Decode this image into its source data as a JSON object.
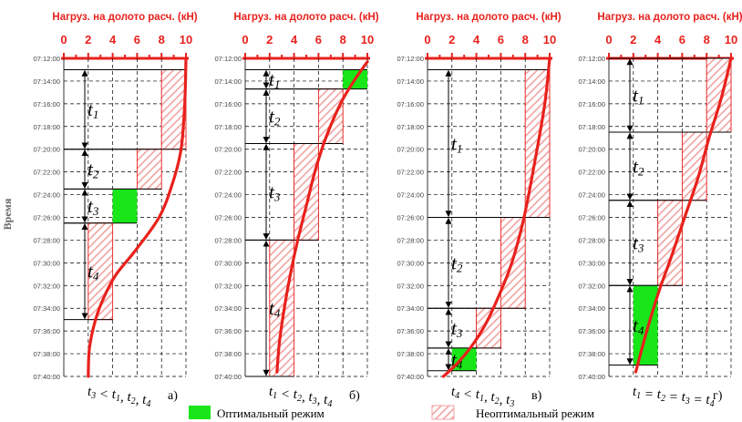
{
  "axis": {
    "x_title": "Нагруз. на долото расч. (кН)",
    "x_ticks": [
      "0",
      "2",
      "4",
      "6",
      "8",
      "10"
    ],
    "y_title": "Время",
    "y_ticks": [
      "07:12:00",
      "07:14:00",
      "07:16:00",
      "07:18:00",
      "07:20:00",
      "07:22:00",
      "07:24:00",
      "07:26:00",
      "07:28:00",
      "07:30:00",
      "07:32:00",
      "07:34:00",
      "07:36:00",
      "07:38:00",
      "07:40:00"
    ]
  },
  "panels": [
    {
      "id": "a",
      "label": "а)",
      "condition": {
        "parts": [
          "t3",
          " < ",
          "t1",
          ", ",
          "t2",
          ", ",
          "t4"
        ]
      },
      "curve_points": [
        [
          10.0,
          0
        ],
        [
          9.9,
          4
        ],
        [
          9.6,
          8
        ],
        [
          8.9,
          11
        ],
        [
          7.8,
          14
        ],
        [
          5.8,
          17
        ],
        [
          4.3,
          19
        ],
        [
          3.3,
          21
        ],
        [
          2.6,
          23
        ],
        [
          2.1,
          25.5
        ],
        [
          2.0,
          28
        ]
      ],
      "steps": [
        {
          "label": "t1",
          "start_min": 1,
          "end_min": 8,
          "load": 8.0
        },
        {
          "label": "t2",
          "start_min": 8,
          "end_min": 11.5,
          "load": 6.0
        },
        {
          "label": "t3",
          "start_min": 11.5,
          "end_min": 14.5,
          "load": 4.0
        },
        {
          "label": "t4",
          "start_min": 14.5,
          "end_min": 23,
          "load": 2.0
        }
      ],
      "optimal_step": "t3"
    },
    {
      "id": "b",
      "label": "б)",
      "condition": {
        "parts": [
          "t1",
          " < ",
          "t2",
          ", ",
          "t3",
          ", ",
          "t4"
        ]
      },
      "curve_points": [
        [
          10.0,
          0.3
        ],
        [
          8.9,
          2
        ],
        [
          7.8,
          4
        ],
        [
          6.6,
          7
        ],
        [
          5.7,
          10
        ],
        [
          5.0,
          13
        ],
        [
          4.3,
          16
        ],
        [
          3.7,
          19
        ],
        [
          3.2,
          22
        ],
        [
          2.8,
          25
        ],
        [
          2.6,
          27.6
        ]
      ],
      "steps": [
        {
          "label": "t1",
          "start_min": 1,
          "end_min": 2.7,
          "load": 8.0
        },
        {
          "label": "t2",
          "start_min": 2.7,
          "end_min": 7.5,
          "load": 6.0
        },
        {
          "label": "t3",
          "start_min": 7.5,
          "end_min": 16,
          "load": 4.0
        },
        {
          "label": "t4",
          "start_min": 16,
          "end_min": 28,
          "load": 2.0
        }
      ],
      "optimal_step": "t1"
    },
    {
      "id": "c",
      "label": "в)",
      "condition": {
        "parts": [
          "t4",
          " < ",
          "t1",
          ", ",
          "t2",
          ", ",
          "t3"
        ]
      },
      "curve_points": [
        [
          10.0,
          0
        ],
        [
          9.6,
          4
        ],
        [
          8.8,
          9
        ],
        [
          7.9,
          14
        ],
        [
          6.9,
          18
        ],
        [
          5.8,
          21
        ],
        [
          4.7,
          23.5
        ],
        [
          3.5,
          25.5
        ],
        [
          2.3,
          27
        ],
        [
          1.3,
          28
        ]
      ],
      "steps": [
        {
          "label": "t1",
          "start_min": 1,
          "end_min": 14,
          "load": 8.0
        },
        {
          "label": "t2",
          "start_min": 14,
          "end_min": 22,
          "load": 6.0
        },
        {
          "label": "t3",
          "start_min": 22,
          "end_min": 25.5,
          "load": 4.0
        },
        {
          "label": "t4",
          "start_min": 25.5,
          "end_min": 27.5,
          "load": 2.0
        }
      ],
      "optimal_step": "t4"
    },
    {
      "id": "d",
      "label": "г)",
      "condition": {
        "parts": [
          "t1",
          " = ",
          "t2",
          " = ",
          "t3",
          " = ",
          "t4"
        ]
      },
      "curve_points": [
        [
          10.0,
          0
        ],
        [
          9.2,
          3.5
        ],
        [
          8.2,
          7
        ],
        [
          7.3,
          10.5
        ],
        [
          6.2,
          14
        ],
        [
          5.1,
          17.5
        ],
        [
          4.1,
          20.5
        ],
        [
          3.1,
          24
        ],
        [
          2.2,
          27.6
        ]
      ],
      "steps": [
        {
          "label": "t1",
          "start_min": 0,
          "end_min": 6.5,
          "load": 8.0
        },
        {
          "label": "t2",
          "start_min": 6.5,
          "end_min": 12.5,
          "load": 6.0
        },
        {
          "label": "t3",
          "start_min": 12.5,
          "end_min": 20,
          "load": 4.0
        },
        {
          "label": "t4",
          "start_min": 20,
          "end_min": 27,
          "load": 2.0
        }
      ],
      "optimal_step": "t4"
    }
  ],
  "legend": {
    "optimal": "Оптимальный режим",
    "non_optimal": "Неоптимальный режим"
  },
  "colors": {
    "red": "#e8211c",
    "green": "#19e619",
    "hatch": "#f2a0a0",
    "grid": "#000000"
  }
}
